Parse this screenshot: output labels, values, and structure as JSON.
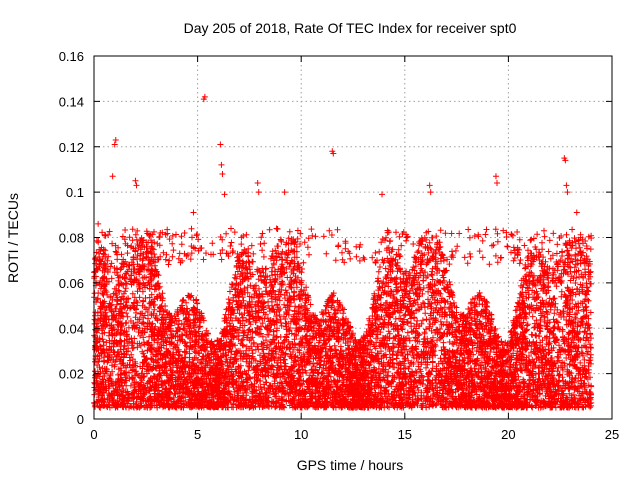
{
  "chart_data": {
    "type": "scatter",
    "title": "Day 205 of 2018, Rate Of TEC Index for receiver spt0",
    "xlabel": "GPS time / hours",
    "ylabel": "ROTI / TECUs",
    "xlim": [
      0,
      25
    ],
    "ylim": [
      0,
      0.16
    ],
    "x_ticks": [
      0,
      5,
      10,
      15,
      20,
      25
    ],
    "x_tick_labels": [
      "0",
      "5",
      "10",
      "15",
      "20",
      "25"
    ],
    "y_ticks": [
      0,
      0.02,
      0.04,
      0.06,
      0.08,
      0.1,
      0.12,
      0.14,
      0.16
    ],
    "y_tick_labels": [
      "0",
      "0.02",
      "0.04",
      "0.06",
      "0.08",
      "0.1",
      "0.12",
      "0.14",
      "0.16"
    ],
    "grid": true,
    "marker": "+",
    "color": "#ff0000",
    "series": [
      {
        "name": "ROTI",
        "description": "dense cloud of points spanning 0 to 24 h, mostly 0.005-0.08 TECU/s",
        "band_low": 0.005,
        "band_high": 0.08,
        "outliers": [
          {
            "x": 0.2,
            "y": 0.086
          },
          {
            "x": 0.9,
            "y": 0.107
          },
          {
            "x": 1.0,
            "y": 0.121
          },
          {
            "x": 1.05,
            "y": 0.123
          },
          {
            "x": 2.0,
            "y": 0.105
          },
          {
            "x": 2.05,
            "y": 0.103
          },
          {
            "x": 3.2,
            "y": 0.082
          },
          {
            "x": 4.8,
            "y": 0.091
          },
          {
            "x": 5.3,
            "y": 0.141
          },
          {
            "x": 5.35,
            "y": 0.142
          },
          {
            "x": 6.1,
            "y": 0.121
          },
          {
            "x": 6.15,
            "y": 0.112
          },
          {
            "x": 6.2,
            "y": 0.108
          },
          {
            "x": 6.3,
            "y": 0.099
          },
          {
            "x": 7.9,
            "y": 0.104
          },
          {
            "x": 7.95,
            "y": 0.1
          },
          {
            "x": 9.2,
            "y": 0.1
          },
          {
            "x": 11.5,
            "y": 0.118
          },
          {
            "x": 11.55,
            "y": 0.117
          },
          {
            "x": 13.9,
            "y": 0.099
          },
          {
            "x": 16.2,
            "y": 0.103
          },
          {
            "x": 16.25,
            "y": 0.1
          },
          {
            "x": 19.4,
            "y": 0.107
          },
          {
            "x": 19.45,
            "y": 0.104
          },
          {
            "x": 22.7,
            "y": 0.115
          },
          {
            "x": 22.75,
            "y": 0.114
          },
          {
            "x": 22.8,
            "y": 0.103
          },
          {
            "x": 22.85,
            "y": 0.1
          },
          {
            "x": 23.3,
            "y": 0.091
          }
        ]
      }
    ]
  }
}
